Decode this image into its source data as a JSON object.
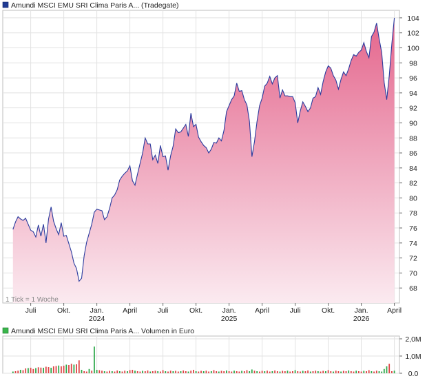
{
  "chart_data": [
    {
      "type": "area",
      "title": "Amundi MSCI EMU SRI Clima Paris A... (Tradegate)",
      "legend_color": "#1f3a93",
      "line_color": "#2a3b9e",
      "fill_top_color": "#e4658c",
      "fill_bottom_color": "#fbeaf0",
      "ylim": [
        66,
        105
      ],
      "yticks": [
        68,
        70,
        72,
        74,
        76,
        78,
        80,
        82,
        84,
        86,
        88,
        90,
        92,
        94,
        96,
        98,
        100,
        102,
        104
      ],
      "grid": true,
      "note": "1 Tick = 1 Woche",
      "x_ticks": [
        {
          "label": "Juli",
          "x": 7
        },
        {
          "label": "Okt.",
          "x": 20
        },
        {
          "label": "Jan.",
          "sub": "2024",
          "x": 33
        },
        {
          "label": "April",
          "x": 46
        },
        {
          "label": "Juli",
          "x": 59
        },
        {
          "label": "Okt.",
          "x": 72
        },
        {
          "label": "Jan.",
          "sub": "2025",
          "x": 85
        },
        {
          "label": "April",
          "x": 98
        },
        {
          "label": "Juli",
          "x": 111
        },
        {
          "label": "Okt.",
          "x": 124
        },
        {
          "label": "Jan.",
          "sub": "2026",
          "x": 137
        },
        {
          "label": "April",
          "x": 150
        }
      ],
      "x_range": [
        -4,
        152
      ],
      "x_unit": "weeks",
      "prices": [
        75.8,
        76.8,
        77.5,
        77.2,
        77.0,
        77.3,
        76.5,
        75.7,
        75.5,
        74.8,
        76.4,
        74.9,
        76.5,
        74.0,
        77.2,
        78.8,
        76.9,
        75.9,
        75.1,
        76.7,
        74.9,
        75.0,
        73.9,
        72.8,
        71.3,
        70.6,
        68.9,
        69.3,
        72.3,
        74.1,
        75.3,
        76.5,
        78.1,
        78.5,
        78.4,
        78.3,
        77.1,
        77.5,
        78.6,
        80.0,
        80.4,
        81.1,
        82.4,
        82.9,
        83.3,
        83.6,
        84.3,
        82.3,
        81.7,
        83.2,
        84.6,
        86.0,
        88.0,
        87.2,
        87.2,
        85.1,
        85.7,
        84.6,
        87.0,
        85.5,
        85.6,
        83.7,
        85.6,
        86.9,
        89.2,
        88.7,
        88.8,
        89.3,
        89.8,
        88.2,
        91.3,
        89.5,
        89.8,
        88.1,
        87.5,
        87.0,
        86.7,
        86.0,
        86.5,
        87.4,
        87.3,
        88.0,
        87.6,
        89.0,
        91.5,
        92.3,
        93.1,
        93.6,
        95.3,
        94.2,
        94.3,
        93.1,
        92.4,
        90.2,
        85.5,
        87.5,
        90.2,
        92.3,
        93.3,
        94.9,
        95.3,
        96.2,
        95.2,
        96.0,
        96.3,
        93.3,
        94.4,
        93.6,
        93.6,
        93.5,
        93.5,
        92.7,
        90.0,
        91.6,
        92.8,
        92.2,
        91.5,
        92.0,
        93.3,
        93.5,
        94.7,
        93.8,
        95.5,
        96.8,
        97.6,
        97.3,
        96.3,
        95.7,
        94.5,
        95.8,
        96.8,
        96.3,
        97.2,
        98.3,
        99.1,
        98.9,
        99.4,
        99.7,
        100.7,
        99.5,
        98.7,
        101.5,
        102.1,
        103.3,
        101.2,
        99.4,
        95.4,
        93.1,
        96.3,
        100.5,
        104.0
      ]
    },
    {
      "type": "bar",
      "title": "Amundi MSCI EMU SRI Clima Paris A... Volumen in Euro",
      "legend_color": "#39b54a",
      "ylim": [
        0,
        2.0
      ],
      "yticks": [
        0,
        1.0,
        2.0
      ],
      "ytick_labels": [
        "0,0",
        "1,0M",
        "2,0M"
      ],
      "unit": "Mio. Euro",
      "volumes": [
        0.1,
        0.12,
        0.15,
        0.2,
        0.18,
        0.28,
        0.3,
        0.32,
        0.25,
        0.3,
        0.35,
        0.33,
        0.32,
        0.38,
        0.36,
        0.32,
        0.4,
        0.42,
        0.45,
        0.4,
        0.44,
        0.5,
        0.48,
        0.55,
        0.5,
        0.52,
        0.75,
        0.2,
        0.12,
        0.1,
        0.25,
        0.15,
        1.55,
        0.2,
        0.18,
        0.15,
        0.12,
        0.1,
        0.14,
        0.12,
        0.1,
        0.16,
        0.12,
        0.1,
        0.15,
        0.12,
        0.18,
        0.2,
        0.15,
        0.12,
        0.1,
        0.14,
        0.12,
        0.16,
        0.1,
        0.12,
        0.15,
        0.12,
        0.1,
        0.18,
        0.12,
        0.1,
        0.15,
        0.12,
        0.14,
        0.1,
        0.12,
        0.16,
        0.12,
        0.1,
        0.15,
        0.2,
        0.12,
        0.1,
        0.14,
        0.12,
        0.15,
        0.1,
        0.12,
        0.18,
        0.12,
        0.1,
        0.14,
        0.12,
        0.16,
        0.12,
        0.1,
        0.15,
        0.12,
        0.1,
        0.14,
        0.12,
        0.18,
        0.12,
        0.22,
        0.15,
        0.12,
        0.1,
        0.14,
        0.12,
        0.15,
        0.1,
        0.12,
        0.16,
        0.12,
        0.1,
        0.14,
        0.12,
        0.15,
        0.1,
        0.12,
        0.18,
        0.12,
        0.1,
        0.14,
        0.12,
        0.16,
        0.1,
        0.12,
        0.15,
        0.12,
        0.1,
        0.14,
        0.12,
        0.18,
        0.12,
        0.1,
        0.15,
        0.12,
        0.1,
        0.14,
        0.12,
        0.16,
        0.12,
        0.1,
        0.15,
        0.12,
        0.1,
        0.14,
        0.12,
        0.18,
        0.12,
        0.1,
        0.15,
        0.12,
        0.1,
        0.25,
        0.4,
        0.55,
        0.12,
        0.15
      ],
      "colors": [
        "#dd4444",
        "#2ea84a"
      ],
      "green_indices": [
        32,
        94,
        145,
        146,
        147
      ]
    }
  ]
}
